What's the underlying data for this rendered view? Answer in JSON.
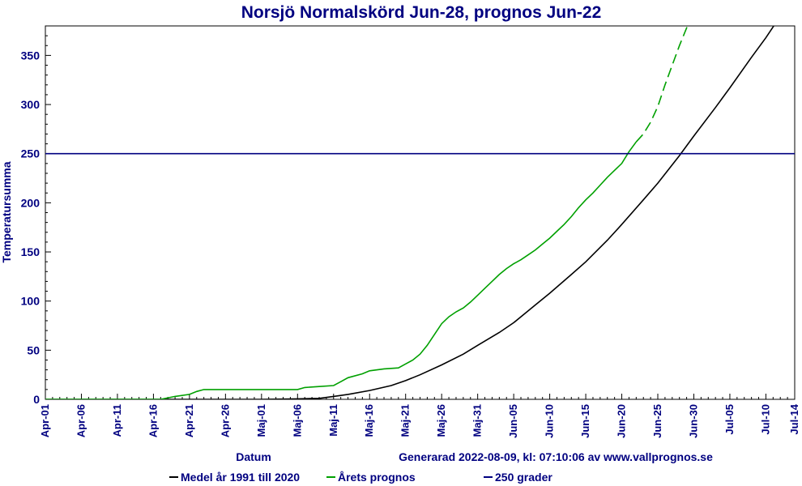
{
  "chart_data": {
    "type": "line",
    "title": "Norsjö Normalskörd Jun-28, prognos Jun-22",
    "xlabel": "Datum",
    "ylabel": "Temperatursumma",
    "generated_text": "Generarad 2022-08-09, kl: 07:10:06 av www.vallprognos.se",
    "x_range_days": [
      0,
      104
    ],
    "ylim": [
      0,
      380
    ],
    "y_ticks": [
      0,
      50,
      100,
      150,
      200,
      250,
      300,
      350
    ],
    "x_ticks": [
      {
        "label": "Apr-01",
        "day": 0
      },
      {
        "label": "Apr-06",
        "day": 5
      },
      {
        "label": "Apr-11",
        "day": 10
      },
      {
        "label": "Apr-16",
        "day": 15
      },
      {
        "label": "Apr-21",
        "day": 20
      },
      {
        "label": "Apr-26",
        "day": 25
      },
      {
        "label": "Maj-01",
        "day": 30
      },
      {
        "label": "Maj-06",
        "day": 35
      },
      {
        "label": "Maj-11",
        "day": 40
      },
      {
        "label": "Maj-16",
        "day": 45
      },
      {
        "label": "Maj-21",
        "day": 50
      },
      {
        "label": "Maj-26",
        "day": 55
      },
      {
        "label": "Maj-31",
        "day": 60
      },
      {
        "label": "Jun-05",
        "day": 65
      },
      {
        "label": "Jun-10",
        "day": 70
      },
      {
        "label": "Jun-15",
        "day": 75
      },
      {
        "label": "Jun-20",
        "day": 80
      },
      {
        "label": "Jun-25",
        "day": 85
      },
      {
        "label": "Jun-30",
        "day": 90
      },
      {
        "label": "Jul-05",
        "day": 95
      },
      {
        "label": "Jul-10",
        "day": 100
      },
      {
        "label": "Jul-14",
        "day": 104
      }
    ],
    "series": [
      {
        "name": "Medel år 1991 till 2020",
        "color": "#000000",
        "style": "solid",
        "points": [
          [
            0,
            0
          ],
          [
            30,
            0
          ],
          [
            35,
            0.5
          ],
          [
            38,
            1
          ],
          [
            40,
            3
          ],
          [
            42,
            5
          ],
          [
            45,
            9
          ],
          [
            48,
            14
          ],
          [
            50,
            19
          ],
          [
            52,
            25
          ],
          [
            55,
            35
          ],
          [
            58,
            46
          ],
          [
            60,
            55
          ],
          [
            63,
            68
          ],
          [
            65,
            78
          ],
          [
            68,
            96
          ],
          [
            70,
            108
          ],
          [
            73,
            127
          ],
          [
            75,
            140
          ],
          [
            78,
            162
          ],
          [
            80,
            178
          ],
          [
            83,
            203
          ],
          [
            85,
            220
          ],
          [
            88,
            248
          ],
          [
            90,
            268
          ],
          [
            93,
            297
          ],
          [
            95,
            317
          ],
          [
            98,
            348
          ],
          [
            100,
            368
          ],
          [
            102,
            390
          ],
          [
            104,
            400
          ]
        ]
      },
      {
        "name": "Årets prognos",
        "color": "#00a000",
        "style": "solid-then-dashed",
        "forecast_from_day": 82,
        "points": [
          [
            0,
            0
          ],
          [
            16,
            0
          ],
          [
            18,
            3
          ],
          [
            20,
            5
          ],
          [
            21,
            8
          ],
          [
            22,
            10
          ],
          [
            25,
            10
          ],
          [
            30,
            10
          ],
          [
            35,
            10
          ],
          [
            36,
            12
          ],
          [
            38,
            13
          ],
          [
            40,
            14
          ],
          [
            41,
            18
          ],
          [
            42,
            22
          ],
          [
            44,
            26
          ],
          [
            45,
            29
          ],
          [
            47,
            31
          ],
          [
            49,
            32
          ],
          [
            50,
            36
          ],
          [
            51,
            40
          ],
          [
            52,
            46
          ],
          [
            53,
            55
          ],
          [
            54,
            66
          ],
          [
            55,
            77
          ],
          [
            56,
            84
          ],
          [
            57,
            89
          ],
          [
            58,
            93
          ],
          [
            59,
            99
          ],
          [
            60,
            106
          ],
          [
            61,
            113
          ],
          [
            62,
            120
          ],
          [
            63,
            127
          ],
          [
            64,
            133
          ],
          [
            65,
            138
          ],
          [
            66,
            142
          ],
          [
            67,
            147
          ],
          [
            68,
            152
          ],
          [
            69,
            158
          ],
          [
            70,
            164
          ],
          [
            71,
            171
          ],
          [
            72,
            178
          ],
          [
            73,
            186
          ],
          [
            74,
            195
          ],
          [
            75,
            203
          ],
          [
            76,
            210
          ],
          [
            77,
            218
          ],
          [
            78,
            226
          ],
          [
            79,
            233
          ],
          [
            80,
            240
          ],
          [
            81,
            252
          ],
          [
            82,
            262
          ],
          [
            83,
            270
          ],
          [
            84,
            282
          ],
          [
            85,
            298
          ],
          [
            86,
            320
          ],
          [
            87,
            340
          ],
          [
            88,
            360
          ],
          [
            89,
            378
          ],
          [
            90,
            395
          ],
          [
            91,
            410
          ]
        ]
      },
      {
        "name": "250 grader",
        "color": "#000080",
        "style": "solid",
        "points": [
          [
            0,
            250
          ],
          [
            104,
            250
          ]
        ]
      }
    ],
    "legend": [
      {
        "label": "Medel år 1991 till 2020",
        "color": "#000000"
      },
      {
        "label": "Årets prognos",
        "color": "#00a000"
      },
      {
        "label": "250 grader",
        "color": "#000080"
      }
    ],
    "legend_position": "bottom",
    "grid": false
  }
}
